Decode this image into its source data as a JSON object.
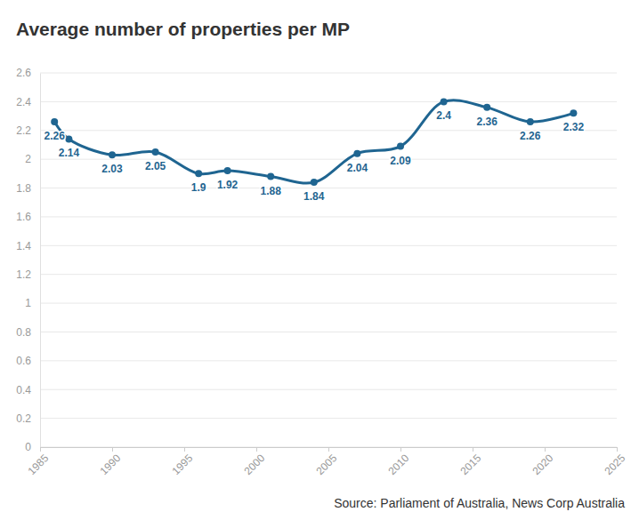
{
  "chart_data": {
    "type": "line",
    "title": "Average number of properties per MP",
    "source": "Source: Parliament of Australia, News Corp Australia",
    "x": [
      1986,
      1987,
      1990,
      1993,
      1996,
      1998,
      2001,
      2004,
      2007,
      2010,
      2013,
      2016,
      2019,
      2022
    ],
    "values": [
      2.26,
      2.14,
      2.03,
      2.05,
      1.9,
      1.92,
      1.88,
      1.84,
      2.04,
      2.09,
      2.4,
      2.36,
      2.26,
      2.32
    ],
    "color": "#1f6591",
    "marker": "circle",
    "line_style": "solid",
    "data_labels": true,
    "grid": true,
    "xlim": [
      1985,
      2025
    ],
    "xticks": [
      1985,
      1990,
      1995,
      2000,
      2005,
      2010,
      2015,
      2020,
      2025
    ],
    "ylim": [
      0,
      2.6
    ],
    "yticks": [
      0,
      0.2,
      0.4,
      0.6,
      0.8,
      1,
      1.2,
      1.4,
      1.6,
      1.8,
      2,
      2.2,
      2.4,
      2.6
    ]
  }
}
